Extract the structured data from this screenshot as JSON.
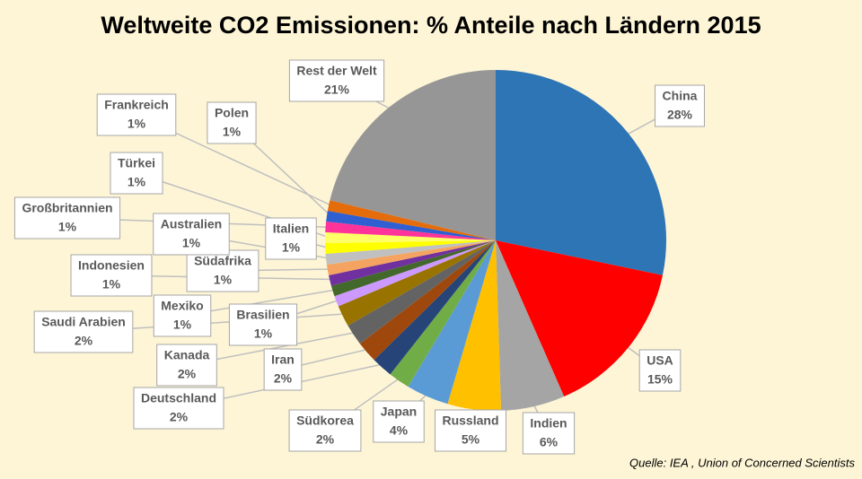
{
  "chart_data": {
    "type": "pie",
    "title": "Weltweite CO2  Emissionen: % Anteile nach Ländern 2015",
    "categories": [
      "China",
      "USA",
      "Indien",
      "Russland",
      "Japan",
      "Südkorea",
      "Deutschland",
      "Iran",
      "Kanada",
      "Saudi Arabien",
      "Brasilien",
      "Mexiko",
      "Indonesien",
      "Südafrika",
      "Australien",
      "Italien",
      "Türkei",
      "Großbritannien",
      "Polen",
      "Frankreich",
      "Rest der Welt"
    ],
    "values": [
      28,
      15,
      6,
      5,
      4,
      2,
      2,
      2,
      2,
      2,
      1,
      1,
      1,
      1,
      1,
      1,
      1,
      1,
      1,
      1,
      21
    ],
    "value_labels": [
      "28%",
      "15%",
      "6%",
      "5%",
      "4%",
      "2%",
      "2%",
      "2%",
      "2%",
      "2%",
      "1%",
      "1%",
      "1%",
      "1%",
      "1%",
      "1%",
      "1%",
      "1%",
      "1%",
      "1%",
      "21%"
    ],
    "colors": [
      "#2e75b6",
      "#ff0000",
      "#a5a5a5",
      "#ffc000",
      "#5b9bd5",
      "#70ad47",
      "#264478",
      "#9e480e",
      "#636363",
      "#997300",
      "#cc99ff",
      "#43682b",
      "#7030a0",
      "#f4a460",
      "#c0c0c0",
      "#ffff00",
      "#ffff66",
      "#ff3399",
      "#2f5fd0",
      "#e46c0a",
      "#969696"
    ],
    "source": "Quelle:  IEA , Union of Concerned Scientists"
  }
}
